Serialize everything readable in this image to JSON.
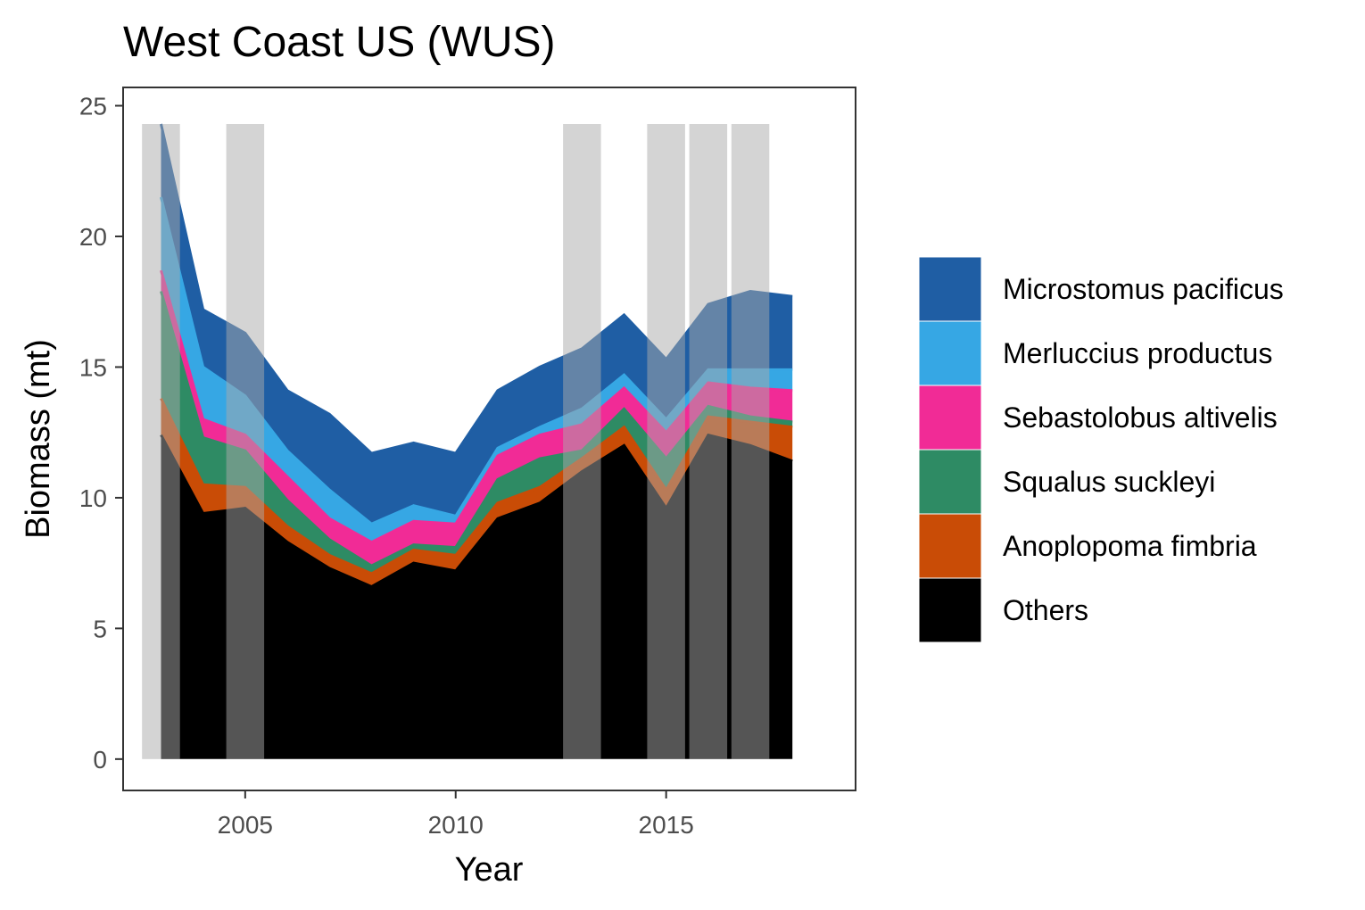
{
  "chart_data": {
    "type": "area",
    "title": "West Coast US (WUS)",
    "xlabel": "Year",
    "ylabel": "Biomass (mt)",
    "xlim": [
      2002.1,
      2019.5
    ],
    "ylim": [
      -1.2,
      25.7
    ],
    "x_ticks": [
      2005,
      2010,
      2015
    ],
    "x_tick_labels": [
      "2005",
      "2010",
      "2015"
    ],
    "y_ticks": [
      0,
      5,
      10,
      15,
      20,
      25
    ],
    "y_tick_labels": [
      "0",
      "5",
      "10",
      "15",
      "20",
      "25"
    ],
    "x": [
      2003,
      2004,
      2005,
      2006,
      2007,
      2008,
      2009,
      2010,
      2011,
      2012,
      2013,
      2014,
      2015,
      2016,
      2017,
      2018
    ],
    "stacking": "cumulative",
    "legend_position": "right",
    "grid": false,
    "series": [
      {
        "name": "Others",
        "color": "#000000",
        "values": [
          12.4,
          9.4,
          9.6,
          8.3,
          7.3,
          6.6,
          7.5,
          7.2,
          9.2,
          9.8,
          11.0,
          12.0,
          9.6,
          12.4,
          12.0,
          11.4
        ]
      },
      {
        "name": "Anoplopoma fimbria",
        "color": "#C94C06",
        "values": [
          1.4,
          1.1,
          0.8,
          0.6,
          0.5,
          0.5,
          0.5,
          0.6,
          0.6,
          0.6,
          0.5,
          0.7,
          0.7,
          0.7,
          0.9,
          1.3
        ]
      },
      {
        "name": "Squalus suckleyi",
        "color": "#2E8B64",
        "values": [
          4.1,
          1.8,
          1.4,
          1.0,
          0.6,
          0.3,
          0.2,
          0.3,
          0.9,
          1.1,
          0.3,
          0.7,
          1.2,
          0.4,
          0.2,
          0.2
        ]
      },
      {
        "name": "Sebastolobus altivelis",
        "color": "#F12B96",
        "values": [
          0.8,
          0.7,
          0.6,
          0.9,
          0.8,
          0.9,
          0.9,
          0.9,
          0.9,
          0.9,
          1.0,
          0.8,
          1.0,
          0.9,
          1.1,
          1.2
        ]
      },
      {
        "name": "Merluccius productus",
        "color": "#36A7E4",
        "values": [
          2.8,
          2.0,
          1.5,
          1.0,
          1.1,
          0.7,
          0.6,
          0.3,
          0.3,
          0.3,
          0.6,
          0.5,
          0.5,
          0.5,
          0.7,
          0.8
        ]
      },
      {
        "name": "Microstomus pacificus",
        "color": "#1F5EA4",
        "values": [
          2.8,
          2.2,
          2.4,
          2.3,
          2.9,
          2.7,
          2.4,
          2.4,
          2.2,
          2.3,
          2.3,
          2.3,
          2.3,
          2.5,
          3.0,
          2.8
        ]
      }
    ],
    "shaded_years": [
      2003,
      2005,
      2013,
      2015,
      2016,
      2017
    ],
    "shaded_color": "#A9A9A9",
    "legend_order": [
      "Microstomus pacificus",
      "Merluccius productus",
      "Sebastolobus altivelis",
      "Squalus suckleyi",
      "Anoplopoma fimbria",
      "Others"
    ]
  }
}
